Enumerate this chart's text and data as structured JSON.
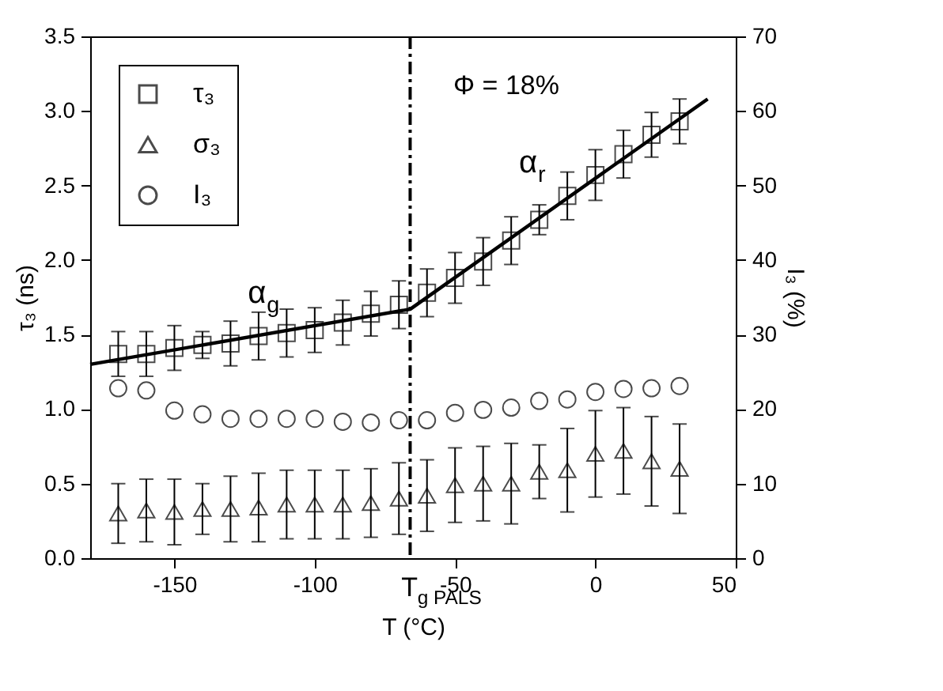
{
  "chart_data": {
    "type": "scatter",
    "xlabel": "T (°C)",
    "ylabel": "τ₃ (ns)",
    "y2label": "I₃ (%)",
    "x": [
      -170,
      -160,
      -150,
      -140,
      -130,
      -120,
      -110,
      -100,
      -90,
      -80,
      -70,
      -60,
      -50,
      -40,
      -30,
      -20,
      -10,
      0,
      10,
      20,
      30
    ],
    "series": [
      {
        "name": "τ₃",
        "color": "#000000",
        "marker": "square",
        "values": [
          1.37,
          1.37,
          1.41,
          1.43,
          1.44,
          1.49,
          1.51,
          1.53,
          1.58,
          1.64,
          1.7,
          1.78,
          1.88,
          1.99,
          2.13,
          2.27,
          2.43,
          2.57,
          2.71,
          2.84,
          2.93
        ],
        "errors": [
          0.15,
          0.15,
          0.15,
          0.09,
          0.15,
          0.16,
          0.16,
          0.15,
          0.15,
          0.15,
          0.16,
          0.16,
          0.17,
          0.16,
          0.16,
          0.1,
          0.16,
          0.17,
          0.16,
          0.15,
          0.15
        ]
      },
      {
        "name": "σ₃",
        "color": "#000000",
        "marker": "triangle",
        "values": [
          0.3,
          0.32,
          0.31,
          0.33,
          0.33,
          0.34,
          0.36,
          0.36,
          0.36,
          0.37,
          0.4,
          0.42,
          0.49,
          0.5,
          0.5,
          0.58,
          0.59,
          0.7,
          0.72,
          0.65,
          0.6
        ],
        "errors": [
          0.2,
          0.21,
          0.22,
          0.17,
          0.22,
          0.23,
          0.23,
          0.23,
          0.23,
          0.23,
          0.24,
          0.24,
          0.25,
          0.25,
          0.27,
          0.18,
          0.28,
          0.29,
          0.29,
          0.3,
          0.3
        ]
      },
      {
        "name": "I₃",
        "color": "#000000",
        "marker": "circle",
        "axis": "y2",
        "values": [
          22.8,
          22.5,
          19.8,
          19.3,
          18.7,
          18.7,
          18.7,
          18.7,
          18.3,
          18.2,
          18.5,
          18.5,
          19.5,
          19.9,
          20.2,
          21.1,
          21.3,
          22.3,
          22.7,
          22.8,
          23.1
        ]
      },
      {
        "type": "line",
        "color": "#000000",
        "x": [
          -180,
          -66,
          40
        ],
        "values": [
          1.3,
          1.67,
          3.08
        ]
      }
    ],
    "xlim": [
      -180,
      50
    ],
    "xticks": [
      -150,
      -100,
      -50,
      0,
      50
    ],
    "ylim": [
      0,
      3.5
    ],
    "yticks": [
      {
        "value": 0,
        "label": "0.0"
      },
      {
        "value": 0.5,
        "label": "0.5"
      },
      {
        "value": 1,
        "label": "1.0"
      },
      {
        "value": 1.5,
        "label": "1.5"
      },
      {
        "value": 2,
        "label": "2.0"
      },
      {
        "value": 2.5,
        "label": "2.5"
      },
      {
        "value": 3,
        "label": "3.0"
      },
      {
        "value": 3.5,
        "label": "3.5"
      }
    ],
    "y2lim": [
      0,
      70
    ],
    "y2ticks": [
      0,
      10,
      20,
      30,
      40,
      50,
      60,
      70
    ],
    "ref_lines": [
      {
        "axis": "x",
        "value": -66,
        "label": "T$_{g PALS}$",
        "line_style": "dashed"
      }
    ],
    "annotations": [
      "Φ = 18%",
      "α$_{g}$",
      "α$_{r}$"
    ],
    "legend": "top left",
    "grid": false
  }
}
